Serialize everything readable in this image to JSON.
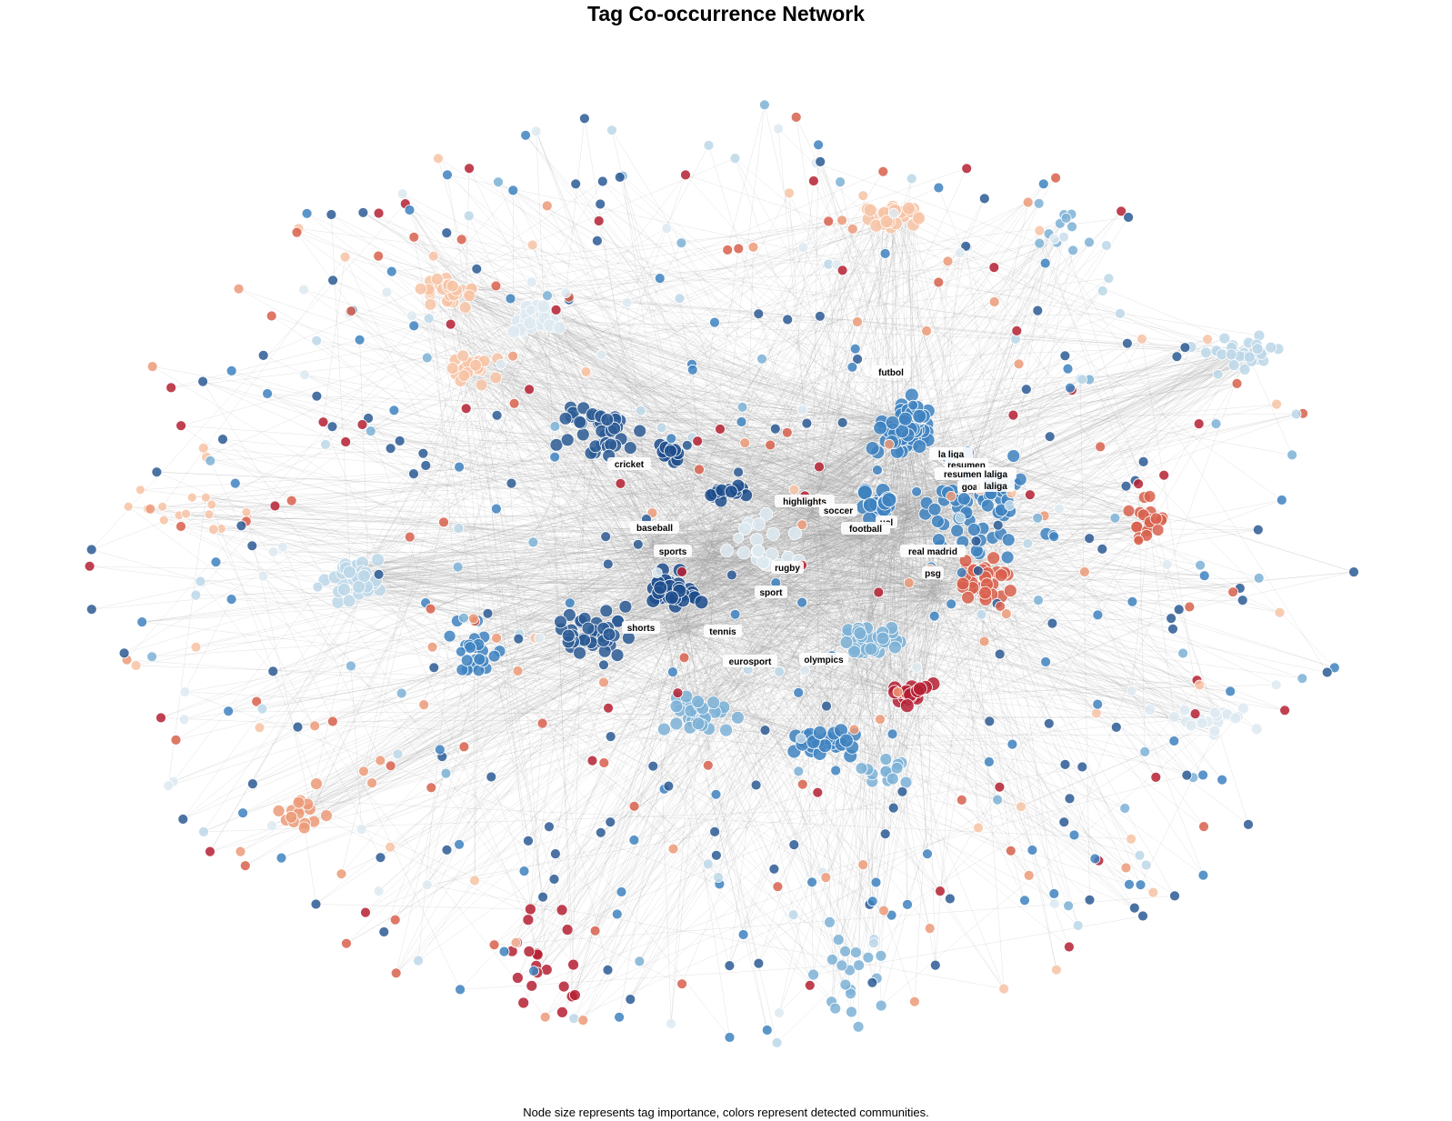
{
  "title": "Tag Co-occurrence Network",
  "caption": "Node size represents tag importance, colors represent detected communities.",
  "palette": {
    "darkblue": "#1f4e8c",
    "navy": "#2c5a94",
    "midblue": "#3e82c0",
    "lightblue": "#7db2d6",
    "paleblue": "#bcd7e8",
    "verypale": "#dde9f1",
    "peach": "#f7c3a4",
    "salmon": "#ec9a78",
    "coral": "#d8604c",
    "red": "#b52032",
    "edge": "#9a9a9a"
  },
  "labels": [
    {
      "text": "futbol"
    },
    {
      "text": "la liga"
    },
    {
      "text": "resumen"
    },
    {
      "text": "resumen laliga"
    },
    {
      "text": "goal"
    },
    {
      "text": "laliga"
    },
    {
      "text": "cricket"
    },
    {
      "text": "highlights"
    },
    {
      "text": "soccer"
    },
    {
      "text": "ucl"
    },
    {
      "text": "football"
    },
    {
      "text": "baseball"
    },
    {
      "text": "sports"
    },
    {
      "text": "real madrid"
    },
    {
      "text": "rugby"
    },
    {
      "text": "psg"
    },
    {
      "text": "sport"
    },
    {
      "text": "shorts"
    },
    {
      "text": "tennis"
    },
    {
      "text": "eurosport"
    },
    {
      "text": "olympics"
    }
  ]
}
